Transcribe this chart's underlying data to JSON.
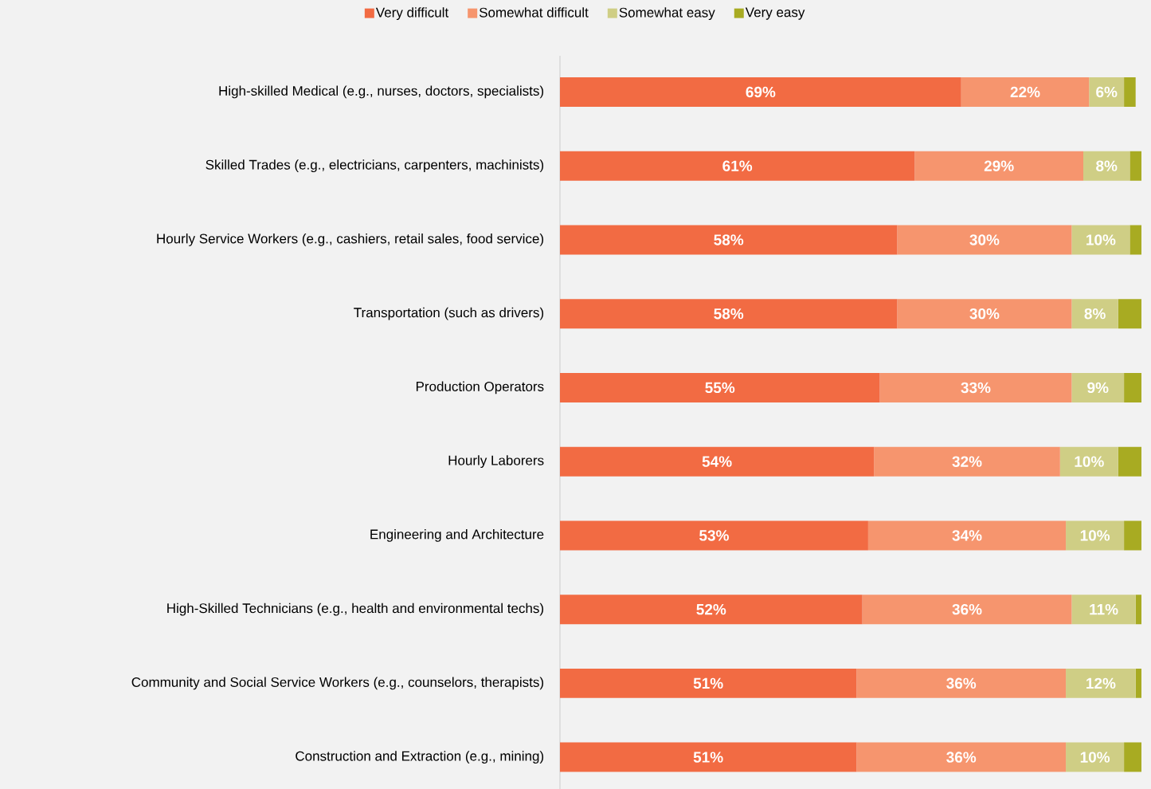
{
  "chart_data": {
    "type": "bar",
    "orientation": "horizontal",
    "stacked": true,
    "legend": "top",
    "categories": [
      "High-skilled Medical (e.g., nurses, doctors, specialists)",
      "Skilled Trades (e.g., electricians, carpenters, machinists)",
      "Hourly Service Workers (e.g., cashiers, retail sales, food service)",
      "Transportation (such as drivers)",
      "Production Operators",
      "Hourly Laborers",
      "Engineering and Architecture",
      "High-Skilled Technicians (e.g., health and environmental techs)",
      "Community and Social Service Workers (e.g., counselors, therapists)",
      "Construction and Extraction (e.g., mining)"
    ],
    "series": [
      {
        "name": "Very difficult",
        "color": "#f26b43",
        "values": [
          69,
          61,
          58,
          58,
          55,
          54,
          53,
          52,
          51,
          51
        ],
        "value_labels": [
          "69%",
          "61%",
          "58%",
          "58%",
          "55%",
          "54%",
          "53%",
          "52%",
          "51%",
          "51%"
        ]
      },
      {
        "name": "Somewhat difficult",
        "color": "#f6956e",
        "values": [
          22,
          29,
          30,
          30,
          33,
          32,
          34,
          36,
          36,
          36
        ],
        "value_labels": [
          "22%",
          "29%",
          "30%",
          "30%",
          "33%",
          "32%",
          "34%",
          "36%",
          "36%",
          "36%"
        ]
      },
      {
        "name": "Somewhat easy",
        "color": "#cfce85",
        "values": [
          6,
          8,
          10,
          8,
          9,
          10,
          10,
          11,
          12,
          10
        ],
        "value_labels": [
          "6%",
          "8%",
          "10%",
          "8%",
          "9%",
          "10%",
          "10%",
          "11%",
          "12%",
          "10%"
        ]
      },
      {
        "name": "Very easy",
        "color": "#a8ab22",
        "values": [
          2,
          2,
          2,
          4,
          3,
          4,
          3,
          1,
          1,
          3
        ]
      }
    ]
  }
}
